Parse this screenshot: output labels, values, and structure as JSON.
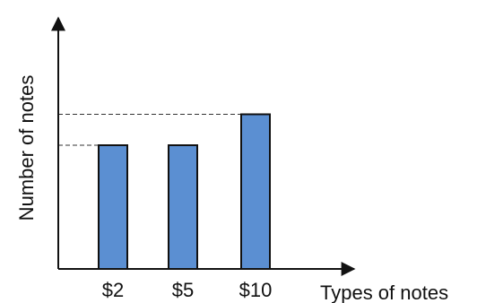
{
  "chart_data": {
    "type": "bar",
    "categories": [
      "$2",
      "$5",
      "$10"
    ],
    "values": [
      4,
      4,
      5
    ],
    "xlabel": "Types of notes",
    "ylabel": "Number of notes",
    "reference_lines": [
      4,
      5
    ],
    "grid": false,
    "legend": "none",
    "y_ticks_labeled": false
  },
  "colors": {
    "bar_fill": "#5b8fd2",
    "bar_stroke": "#111111",
    "axis": "#111111",
    "reference_line": "#333333"
  }
}
